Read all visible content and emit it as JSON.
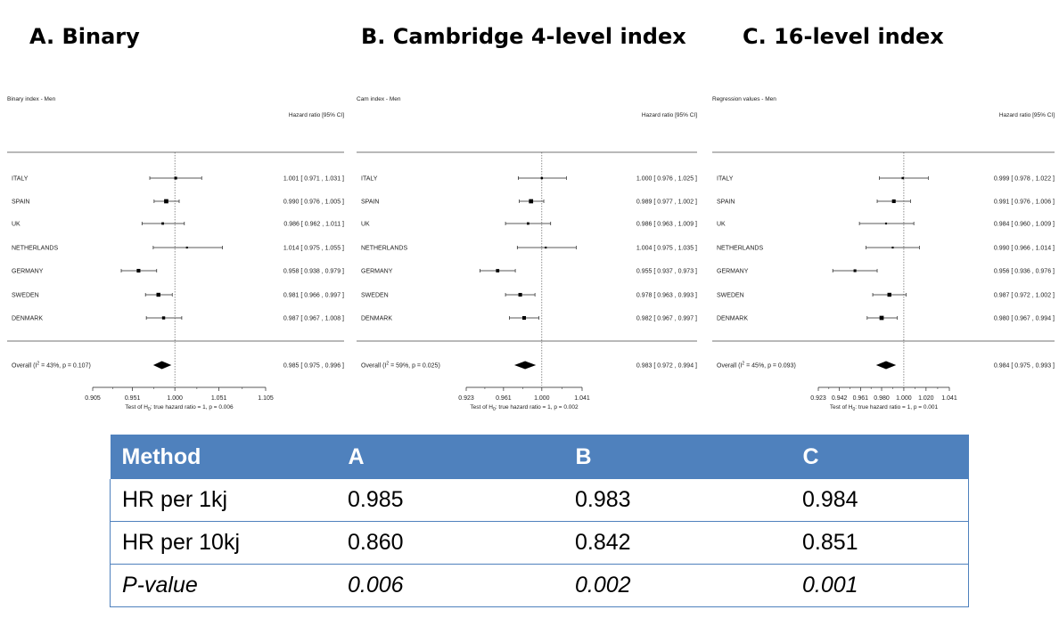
{
  "panel_titles": [
    "A.   Binary",
    "B. Cambridge 4-level index",
    "C. 16-level index"
  ],
  "chart_data": [
    {
      "type": "forest",
      "title": "Binary index - Men",
      "column_header": "Hazard ratio [95% CI]",
      "rows": [
        {
          "label": "ITALY",
          "hr": 1.001,
          "lo": 0.971,
          "hi": 1.031,
          "text": "1.001 [ 0.971 , 1.031 ]",
          "w": 0.5
        },
        {
          "label": "SPAIN",
          "hr": 0.99,
          "lo": 0.976,
          "hi": 1.005,
          "text": "0.990 [ 0.976 , 1.005 ]",
          "w": 1.0
        },
        {
          "label": "UK",
          "hr": 0.986,
          "lo": 0.962,
          "hi": 1.011,
          "text": "0.986 [ 0.962 , 1.011 ]",
          "w": 0.4
        },
        {
          "label": "NETHERLANDS",
          "hr": 1.014,
          "lo": 0.975,
          "hi": 1.055,
          "text": "1.014 [ 0.975 , 1.055 ]",
          "w": 0.2
        },
        {
          "label": "GERMANY",
          "hr": 0.958,
          "lo": 0.938,
          "hi": 0.979,
          "text": "0.958 [ 0.938 , 0.979 ]",
          "w": 0.8
        },
        {
          "label": "SWEDEN",
          "hr": 0.981,
          "lo": 0.966,
          "hi": 0.997,
          "text": "0.981 [ 0.966 , 0.997 ]",
          "w": 0.9
        },
        {
          "label": "DENMARK",
          "hr": 0.987,
          "lo": 0.967,
          "hi": 1.008,
          "text": "0.987 [ 0.967 , 1.008 ]",
          "w": 0.6
        }
      ],
      "overall": {
        "label_pre": "Overall (I",
        "label_sup": "2",
        "label_post": " = 43%, p = 0.107)",
        "hr": 0.985,
        "lo": 0.975,
        "hi": 0.996,
        "text": "0.985 [ 0.975 , 0.996 ]"
      },
      "xlim": [
        0.905,
        1.105
      ],
      "ticks": [
        "0.905",
        "0.951",
        "1.000",
        "1.051",
        "1.105"
      ],
      "footer": {
        "pre": "Test of H",
        "sub": "0",
        "post": ": true hazard ratio = 1, p = 0.006"
      }
    },
    {
      "type": "forest",
      "title": "Cam index - Men",
      "column_header": "Hazard ratio [95% CI]",
      "rows": [
        {
          "label": "ITALY",
          "hr": 1.0,
          "lo": 0.976,
          "hi": 1.025,
          "text": "1.000 [ 0.976 , 1.025 ]",
          "w": 0.3
        },
        {
          "label": "SPAIN",
          "hr": 0.989,
          "lo": 0.977,
          "hi": 1.002,
          "text": "0.989 [ 0.977 , 1.002 ]",
          "w": 1.0
        },
        {
          "label": "UK",
          "hr": 0.986,
          "lo": 0.963,
          "hi": 1.009,
          "text": "0.986 [ 0.963 , 1.009 ]",
          "w": 0.4
        },
        {
          "label": "NETHERLANDS",
          "hr": 1.004,
          "lo": 0.975,
          "hi": 1.035,
          "text": "1.004 [ 0.975 , 1.035 ]",
          "w": 0.2
        },
        {
          "label": "GERMANY",
          "hr": 0.955,
          "lo": 0.937,
          "hi": 0.973,
          "text": "0.955 [ 0.937 , 0.973 ]",
          "w": 0.7
        },
        {
          "label": "SWEDEN",
          "hr": 0.978,
          "lo": 0.963,
          "hi": 0.993,
          "text": "0.978 [ 0.963 , 0.993 ]",
          "w": 0.8
        },
        {
          "label": "DENMARK",
          "hr": 0.982,
          "lo": 0.967,
          "hi": 0.997,
          "text": "0.982 [ 0.967 , 0.997 ]",
          "w": 0.8
        }
      ],
      "overall": {
        "label_pre": "Overall (I",
        "label_sup": "2",
        "label_post": " = 59%, p = 0.025)",
        "hr": 0.983,
        "lo": 0.972,
        "hi": 0.994,
        "text": "0.983 [ 0.972 , 0.994 ]"
      },
      "xlim": [
        0.923,
        1.041
      ],
      "ticks": [
        "0.923",
        "0.961",
        "1.000",
        "1.041"
      ],
      "footer": {
        "pre": "Test of H",
        "sub": "0",
        "post": ": true hazard ratio = 1, p = 0.002"
      }
    },
    {
      "type": "forest",
      "title": "Regression values - Men",
      "column_header": "Hazard ratio [95% CI]",
      "rows": [
        {
          "label": "ITALY",
          "hr": 0.999,
          "lo": 0.978,
          "hi": 1.022,
          "text": "0.999 [ 0.978 , 1.022 ]",
          "w": 0.3
        },
        {
          "label": "SPAIN",
          "hr": 0.991,
          "lo": 0.976,
          "hi": 1.006,
          "text": "0.991 [ 0.976 , 1.006 ]",
          "w": 0.8
        },
        {
          "label": "UK",
          "hr": 0.984,
          "lo": 0.96,
          "hi": 1.009,
          "text": "0.984 [ 0.960 , 1.009 ]",
          "w": 0.2
        },
        {
          "label": "NETHERLANDS",
          "hr": 0.99,
          "lo": 0.966,
          "hi": 1.014,
          "text": "0.990 [ 0.966 , 1.014 ]",
          "w": 0.2
        },
        {
          "label": "GERMANY",
          "hr": 0.956,
          "lo": 0.936,
          "hi": 0.976,
          "text": "0.956 [ 0.936 , 0.976 ]",
          "w": 0.5
        },
        {
          "label": "SWEDEN",
          "hr": 0.987,
          "lo": 0.972,
          "hi": 1.002,
          "text": "0.987 [ 0.972 , 1.002 ]",
          "w": 0.9
        },
        {
          "label": "DENMARK",
          "hr": 0.98,
          "lo": 0.967,
          "hi": 0.994,
          "text": "0.980 [ 0.967 , 0.994 ]",
          "w": 1.0
        }
      ],
      "overall": {
        "label_pre": "Overall (I",
        "label_sup": "2",
        "label_post": " = 45%, p = 0.093)",
        "hr": 0.984,
        "lo": 0.975,
        "hi": 0.993,
        "text": "0.984 [ 0.975 , 0.993 ]"
      },
      "xlim": [
        0.923,
        1.041
      ],
      "ticks": [
        "0.923",
        "0.942",
        "0.961",
        "0.980",
        "1.000",
        "1.020",
        "1.041"
      ],
      "footer": {
        "pre": "Test of H",
        "sub": "0",
        "post": ": true hazard ratio = 1, p = 0.001"
      }
    }
  ],
  "summary_table": {
    "header": [
      "Method",
      "A",
      "B",
      "C"
    ],
    "rows": [
      [
        "HR per 1kj",
        "0.985",
        "0.983",
        "0.984"
      ],
      [
        "HR per 10kj",
        "0.860",
        "0.842",
        "0.851"
      ],
      [
        "P-value",
        "0.006",
        "0.002",
        "0.001"
      ]
    ]
  },
  "colors": {
    "table_header": "#4f81bd",
    "table_border": "#4f81bd"
  }
}
